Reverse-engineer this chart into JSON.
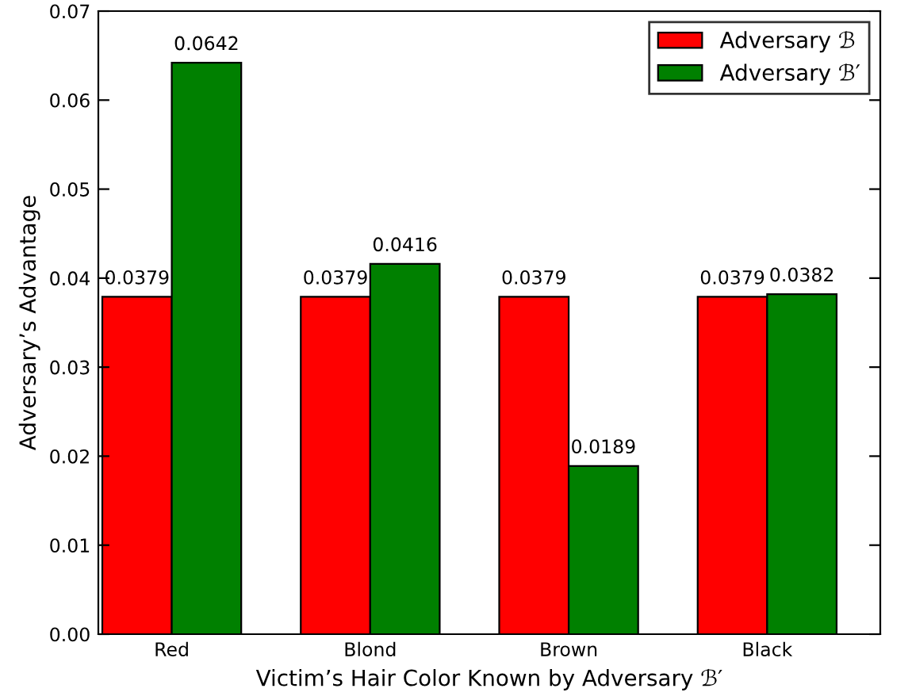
{
  "chart_data": {
    "type": "bar",
    "xlabel": "Victim’s Hair Color Known by Adversary ℬ′",
    "ylabel": "Adversary’s Advantage",
    "categories": [
      "Red",
      "Blond",
      "Brown",
      "Black"
    ],
    "series": [
      {
        "name": "Adversary ℬ",
        "color": "#ff0000",
        "values": [
          0.0379,
          0.0379,
          0.0379,
          0.0379
        ]
      },
      {
        "name": "Adversary ℬ′",
        "color": "#008000",
        "values": [
          0.0642,
          0.0416,
          0.0189,
          0.0382
        ]
      }
    ],
    "ylim": [
      0,
      0.07
    ],
    "yticks": [
      {
        "value": 0,
        "label": "0.00"
      },
      {
        "value": 0.01,
        "label": "0.01"
      },
      {
        "value": 0.02,
        "label": "0.02"
      },
      {
        "value": 0.03,
        "label": "0.03"
      },
      {
        "value": 0.04,
        "label": "0.04"
      },
      {
        "value": 0.05,
        "label": "0.05"
      },
      {
        "value": 0.06,
        "label": "0.06"
      },
      {
        "value": 0.07,
        "label": "0.07"
      }
    ],
    "data_labels": true,
    "legend": "top right",
    "grid": false
  }
}
